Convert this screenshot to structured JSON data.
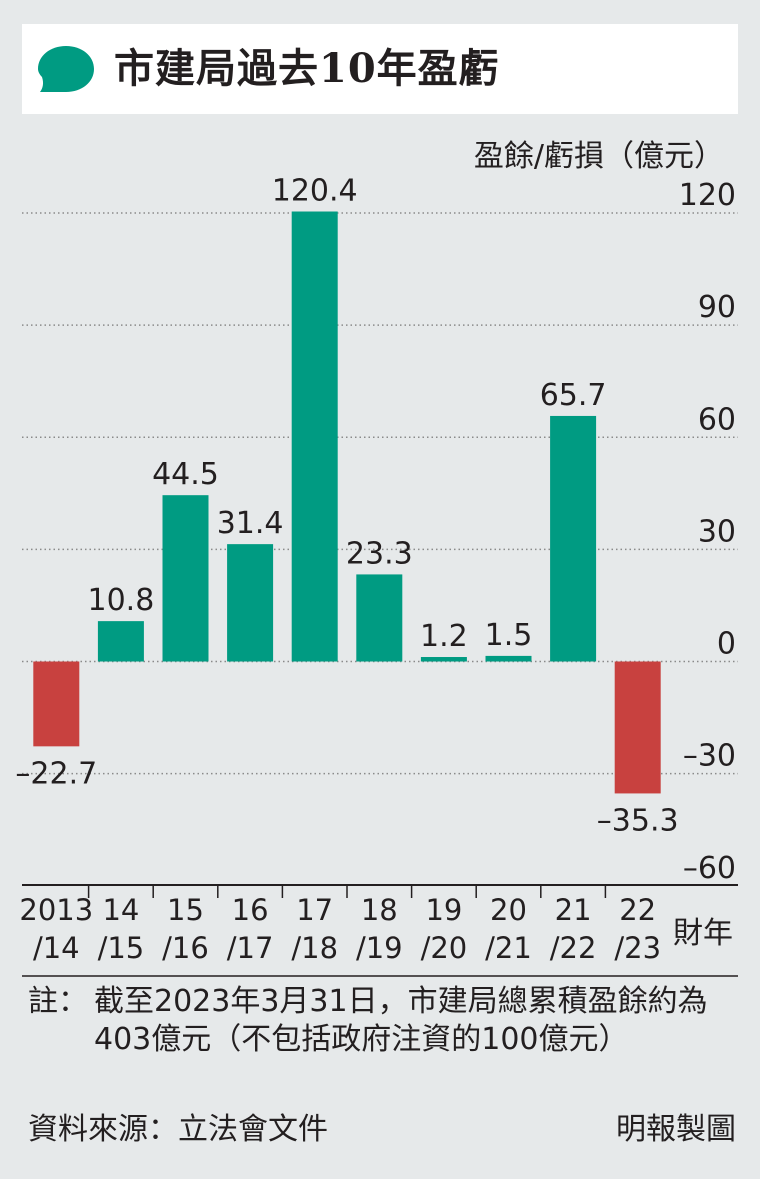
{
  "title": "市建局過去10年盈虧",
  "colors": {
    "positive": "#009b82",
    "negative": "#c8413f",
    "icon": "#009b82",
    "grid": "#8a8a8a",
    "text": "#231f20"
  },
  "chart_data": {
    "type": "bar",
    "title": "市建局過去10年盈虧",
    "ylabel": "盈餘/虧損（億元）",
    "xlabel": "財年",
    "categories": [
      [
        "2013",
        "/14"
      ],
      [
        "14",
        "/15"
      ],
      [
        "15",
        "/16"
      ],
      [
        "16",
        "/17"
      ],
      [
        "17",
        "/18"
      ],
      [
        "18",
        "/19"
      ],
      [
        "19",
        "/20"
      ],
      [
        "20",
        "/21"
      ],
      [
        "21",
        "/22"
      ],
      [
        "22",
        "/23"
      ]
    ],
    "values": [
      -22.7,
      10.8,
      44.5,
      31.4,
      120.4,
      23.3,
      1.2,
      1.5,
      65.7,
      -35.3
    ],
    "value_labels": [
      "–22.7",
      "10.8",
      "44.5",
      "31.4",
      "120.4",
      "23.3",
      "1.2",
      "1.5",
      "65.7",
      "–35.3"
    ],
    "yticks": [
      120,
      90,
      60,
      30,
      0,
      -30,
      -60
    ],
    "ytick_labels": [
      "120",
      "90",
      "60",
      "30",
      "0",
      "–30",
      "–60"
    ],
    "ylim": [
      -60,
      120
    ],
    "grid": true
  },
  "note_label": "註：",
  "note_text": "截至2023年3月31日，市建局總累積盈餘約為403億元（不包括政府注資的100億元）",
  "source": "資料來源：立法會文件",
  "credit": "明報製圖"
}
